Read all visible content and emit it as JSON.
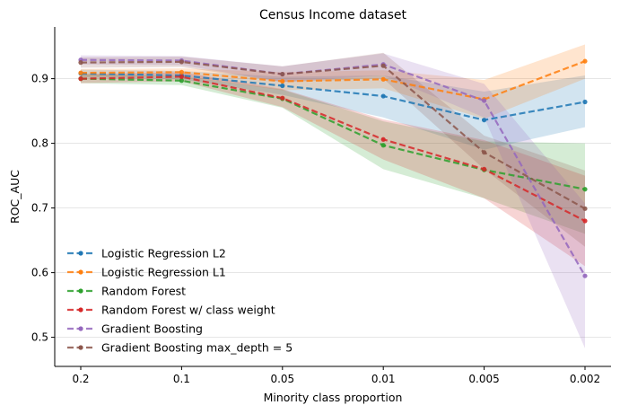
{
  "chart_data": {
    "type": "line",
    "title": "Census Income dataset",
    "xlabel": "Minority class proportion",
    "ylabel": "ROC_AUC",
    "categories": [
      "0.2",
      "0.1",
      "0.05",
      "0.01",
      "0.005",
      "0.002"
    ],
    "ylim": [
      0.455,
      0.98
    ],
    "yticks": [
      "0.5",
      "0.6",
      "0.7",
      "0.8",
      "0.9"
    ],
    "ytick_values": [
      0.5,
      0.6,
      0.7,
      0.8,
      0.9
    ],
    "grid": "horizontal",
    "legend_position": "lower-left",
    "series": [
      {
        "name": "Logistic Regression L2",
        "color": "#1f77b4",
        "values": [
          0.908,
          0.905,
          0.889,
          0.873,
          0.836,
          0.864
        ],
        "lower": [
          0.902,
          0.899,
          0.875,
          0.84,
          0.79,
          0.825
        ],
        "upper": [
          0.914,
          0.912,
          0.903,
          0.905,
          0.88,
          0.905
        ]
      },
      {
        "name": "Logistic Regression L1",
        "color": "#ff7f0e",
        "values": [
          0.909,
          0.91,
          0.896,
          0.899,
          0.868,
          0.927
        ],
        "lower": [
          0.903,
          0.904,
          0.882,
          0.885,
          0.838,
          0.9
        ],
        "upper": [
          0.915,
          0.916,
          0.91,
          0.913,
          0.898,
          0.953
        ]
      },
      {
        "name": "Random Forest",
        "color": "#2ca02c",
        "values": [
          0.9,
          0.897,
          0.869,
          0.797,
          0.759,
          0.729
        ],
        "lower": [
          0.893,
          0.89,
          0.855,
          0.76,
          0.715,
          0.66
        ],
        "upper": [
          0.907,
          0.904,
          0.883,
          0.834,
          0.803,
          0.8
        ]
      },
      {
        "name": "Random Forest w/ class weight",
        "color": "#d62728",
        "values": [
          0.9,
          0.903,
          0.87,
          0.806,
          0.76,
          0.68
        ],
        "lower": [
          0.893,
          0.896,
          0.856,
          0.775,
          0.715,
          0.61
        ],
        "upper": [
          0.907,
          0.91,
          0.884,
          0.837,
          0.805,
          0.75
        ]
      },
      {
        "name": "Gradient Boosting",
        "color": "#9467bd",
        "values": [
          0.929,
          0.928,
          0.907,
          0.922,
          0.866,
          0.595
        ],
        "lower": [
          0.922,
          0.921,
          0.895,
          0.905,
          0.84,
          0.483
        ],
        "upper": [
          0.936,
          0.935,
          0.919,
          0.939,
          0.892,
          0.707
        ]
      },
      {
        "name": "Gradient Boosting max_depth = 5",
        "color": "#8c564b",
        "values": [
          0.925,
          0.926,
          0.907,
          0.92,
          0.786,
          0.699
        ],
        "lower": [
          0.917,
          0.918,
          0.895,
          0.9,
          0.76,
          0.64
        ],
        "upper": [
          0.933,
          0.934,
          0.919,
          0.94,
          0.812,
          0.758
        ]
      }
    ]
  }
}
